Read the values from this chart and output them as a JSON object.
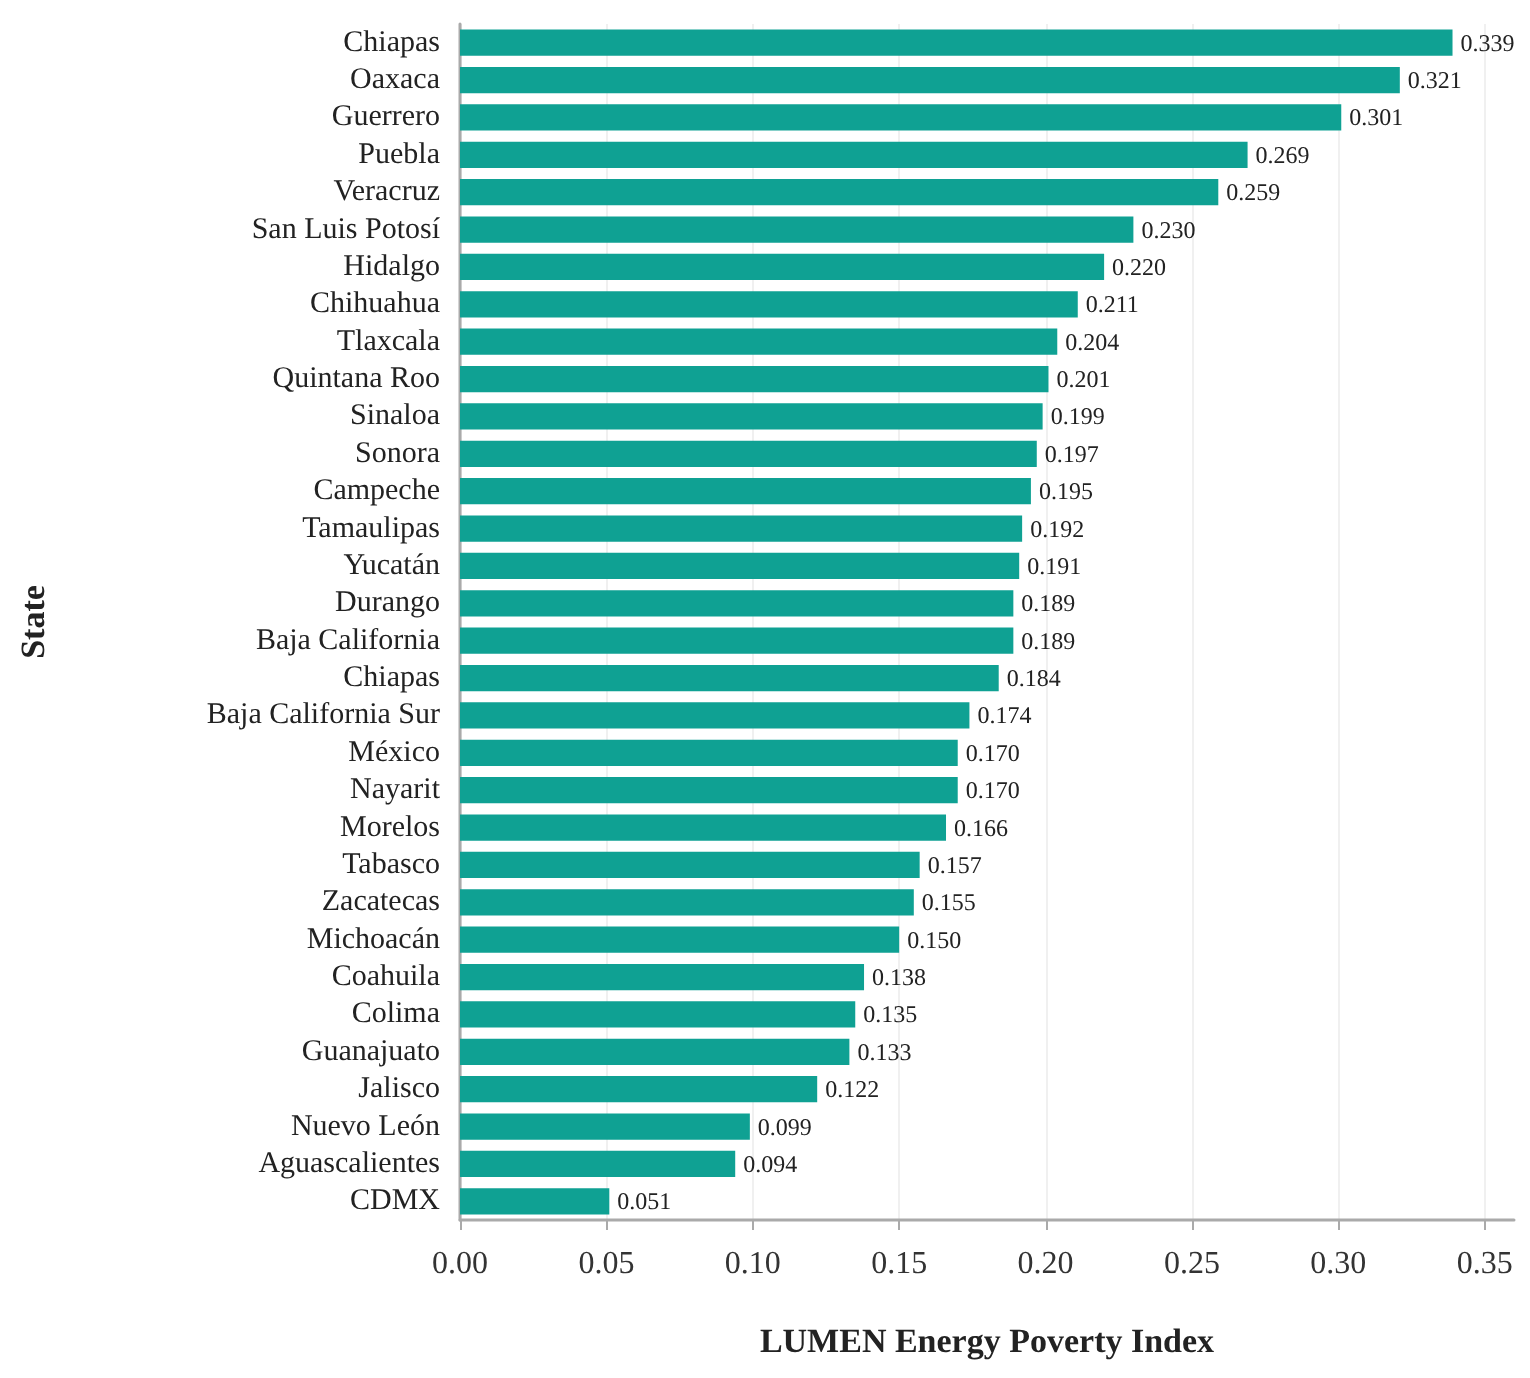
{
  "chart_data": {
    "type": "bar",
    "orientation": "horizontal",
    "xlabel": "LUMEN Energy Poverty Index",
    "ylabel": "State",
    "categories": [
      "Chiapas",
      "Oaxaca",
      "Guerrero",
      "Puebla",
      "Veracruz",
      "San Luis Potosí",
      "Hidalgo",
      "Chihuahua",
      "Tlaxcala",
      "Quintana Roo",
      "Sinaloa",
      "Sonora",
      "Campeche",
      "Tamaulipas",
      "Yucatán",
      "Durango",
      "Baja California",
      "Chiapas",
      "Baja California Sur",
      "México",
      "Nayarit",
      "Morelos",
      "Tabasco",
      "Zacatecas",
      "Michoacán",
      "Coahuila",
      "Colima",
      "Guanajuato",
      "Jalisco",
      "Nuevo León",
      "Aguascalientes",
      "CDMX"
    ],
    "values": [
      0.339,
      0.321,
      0.301,
      0.269,
      0.259,
      0.23,
      0.22,
      0.211,
      0.204,
      0.201,
      0.199,
      0.197,
      0.195,
      0.192,
      0.191,
      0.189,
      0.189,
      0.184,
      0.174,
      0.17,
      0.17,
      0.166,
      0.157,
      0.155,
      0.15,
      0.138,
      0.135,
      0.133,
      0.122,
      0.099,
      0.094,
      0.051
    ],
    "value_labels": [
      "0.339",
      "0.321",
      "0.301",
      "0.269",
      "0.259",
      "0.230",
      "0.220",
      "0.211",
      "0.204",
      "0.201",
      "0.199",
      "0.197",
      "0.195",
      "0.192",
      "0.191",
      "0.189",
      "0.189",
      "0.184",
      "0.174",
      "0.170",
      "0.170",
      "0.166",
      "0.157",
      "0.155",
      "0.150",
      "0.138",
      "0.135",
      "0.133",
      "0.122",
      "0.099",
      "0.094",
      "0.051"
    ],
    "color": "#0fa193",
    "xlim": [
      0,
      0.36
    ],
    "xticks": [
      {
        "value": 0,
        "label": "0.00"
      },
      {
        "value": 0.05,
        "label": "0.05"
      },
      {
        "value": 0.1,
        "label": "0.10"
      },
      {
        "value": 0.15,
        "label": "0.15"
      },
      {
        "value": 0.2,
        "label": "0.20"
      },
      {
        "value": 0.25,
        "label": "0.25"
      },
      {
        "value": 0.3,
        "label": "0.30"
      },
      {
        "value": 0.35,
        "label": "0.35"
      }
    ],
    "grid": "x"
  }
}
